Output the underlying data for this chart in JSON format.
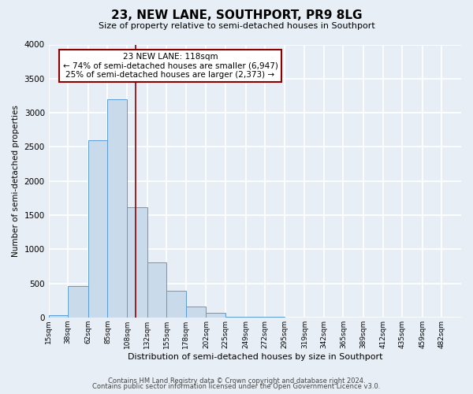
{
  "title": "23, NEW LANE, SOUTHPORT, PR9 8LG",
  "subtitle": "Size of property relative to semi-detached houses in Southport",
  "xlabel": "Distribution of semi-detached houses by size in Southport",
  "ylabel": "Number of semi-detached properties",
  "footer_lines": [
    "Contains HM Land Registry data © Crown copyright and database right 2024.",
    "Contains public sector information licensed under the Open Government Licence v3.0."
  ],
  "bin_labels": [
    "15sqm",
    "38sqm",
    "62sqm",
    "85sqm",
    "108sqm",
    "132sqm",
    "155sqm",
    "178sqm",
    "202sqm",
    "225sqm",
    "249sqm",
    "272sqm",
    "295sqm",
    "319sqm",
    "342sqm",
    "365sqm",
    "389sqm",
    "412sqm",
    "435sqm",
    "459sqm",
    "482sqm"
  ],
  "bin_edges": [
    15,
    38,
    62,
    85,
    108,
    132,
    155,
    178,
    202,
    225,
    249,
    272,
    295,
    319,
    342,
    365,
    389,
    412,
    435,
    459,
    482
  ],
  "bar_heights": [
    30,
    460,
    2600,
    3200,
    1620,
    810,
    390,
    160,
    65,
    10,
    5,
    5,
    0,
    0,
    0,
    0,
    0,
    0,
    0,
    0,
    0
  ],
  "bar_color": "#c9daea",
  "bar_edge_color": "#5b9bd5",
  "property_size": 118,
  "vline_color": "#8b0000",
  "annotation_title": "23 NEW LANE: 118sqm",
  "annotation_line1": "← 74% of semi-detached houses are smaller (6,947)",
  "annotation_line2": "25% of semi-detached houses are larger (2,373) →",
  "annotation_box_color": "#ffffff",
  "annotation_border_color": "#8b0000",
  "ylim": [
    0,
    4000
  ],
  "yticks": [
    0,
    500,
    1000,
    1500,
    2000,
    2500,
    3000,
    3500,
    4000
  ],
  "bg_color": "#e8eef5",
  "grid_color": "#ffffff"
}
